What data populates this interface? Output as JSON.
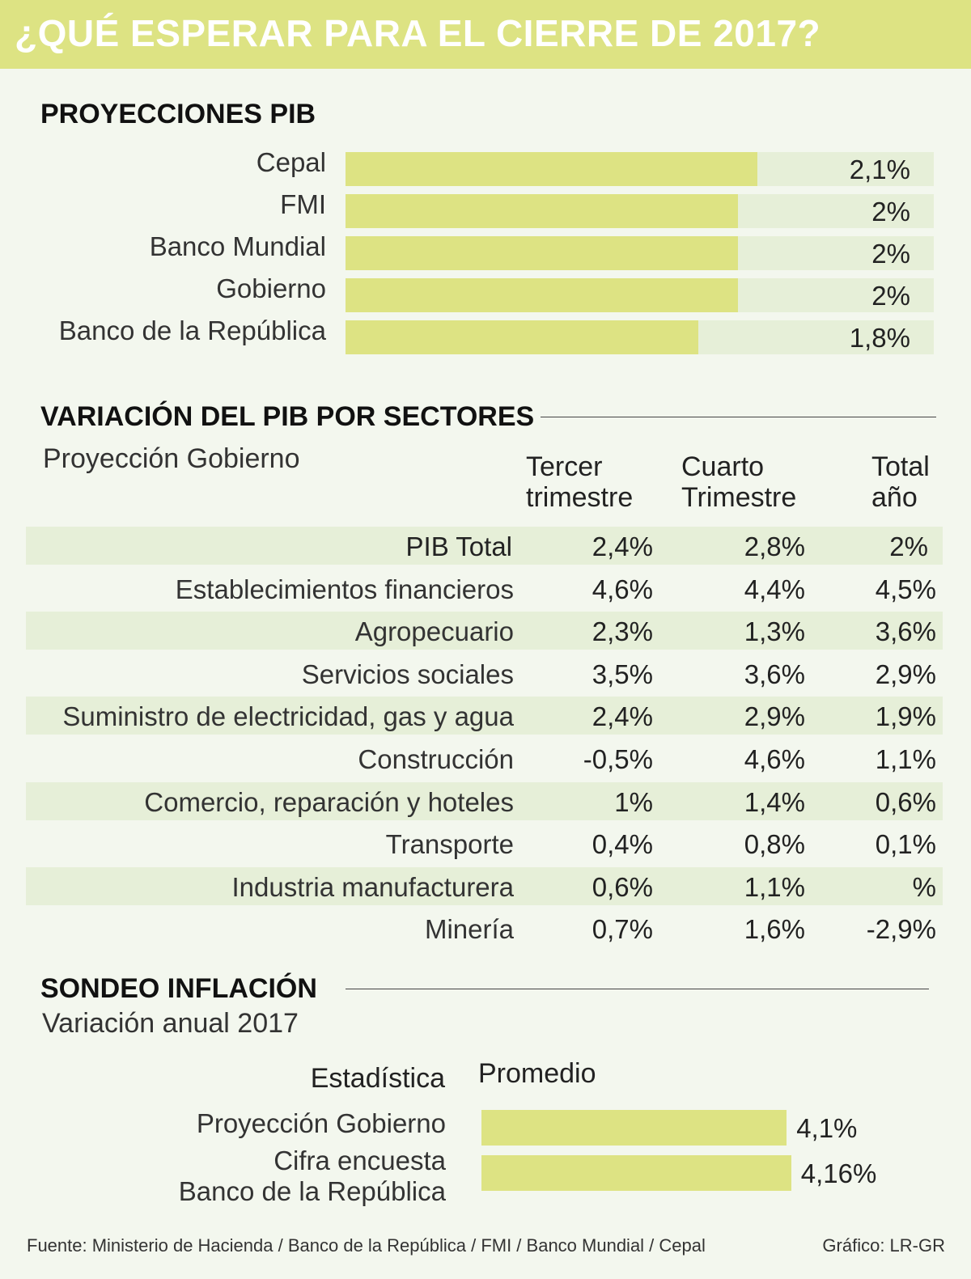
{
  "title": "¿QUÉ ESPERAR PARA EL CIERRE DE 2017?",
  "chart_data": [
    {
      "type": "bar",
      "title": "PROYECCIONES PIB",
      "categories": [
        "Cepal",
        "FMI",
        "Banco Mundial",
        "Gobierno",
        "Banco de la República"
      ],
      "values": [
        2.1,
        2,
        2,
        2,
        1.8
      ],
      "value_labels": [
        "2,1%",
        "2%",
        "2%",
        "2%",
        "1,8%"
      ],
      "color": "#dde383",
      "track_color": "#e6efd8",
      "xlim": [
        0,
        3
      ]
    },
    {
      "type": "bar",
      "title": "SONDEO INFLACIÓN",
      "subtitle": "Variación anual 2017",
      "column_headers": [
        "Estadística",
        "Promedio"
      ],
      "categories": [
        "Proyección Gobierno",
        "Cifra encuesta\nBanco de la República"
      ],
      "values": [
        4.1,
        4.16
      ],
      "value_labels": [
        "4,1%",
        "4,16%"
      ],
      "color": "#dde383",
      "xlim": [
        0,
        5.5
      ]
    }
  ],
  "table": {
    "title": "VARIACIÓN DEL PIB POR SECTORES",
    "subtitle": "Proyección Gobierno",
    "columns": [
      "Tercer\ntrimestre",
      "Cuarto\nTrimestre",
      "Total\naño"
    ],
    "rows": [
      [
        "PIB  Total",
        "2,4%",
        "2,8%",
        "2%"
      ],
      [
        "Establecimientos financieros",
        "4,6%",
        "4,4%",
        "4,5%"
      ],
      [
        "Agropecuario",
        "2,3%",
        "1,3%",
        "3,6%"
      ],
      [
        "Servicios sociales",
        "3,5%",
        "3,6%",
        "2,9%"
      ],
      [
        "Suministro de electricidad, gas y agua",
        "2,4%",
        "2,9%",
        "1,9%"
      ],
      [
        "Construcción",
        "-0,5%",
        "4,6%",
        "1,1%"
      ],
      [
        "Comercio, reparación y hoteles",
        "1%",
        "1,4%",
        "0,6%"
      ],
      [
        "Transporte",
        "0,4%",
        "0,8%",
        "0,1%"
      ],
      [
        "Industria manufacturera",
        "0,6%",
        "1,1%",
        "%"
      ],
      [
        "Minería",
        "0,7%",
        "1,6%",
        "-2,9%"
      ]
    ]
  },
  "source": "Fuente: Ministerio de Hacienda / Banco de la República / FMI / Banco Mundial / Cepal",
  "credit": "Gráfico: LR-GR"
}
